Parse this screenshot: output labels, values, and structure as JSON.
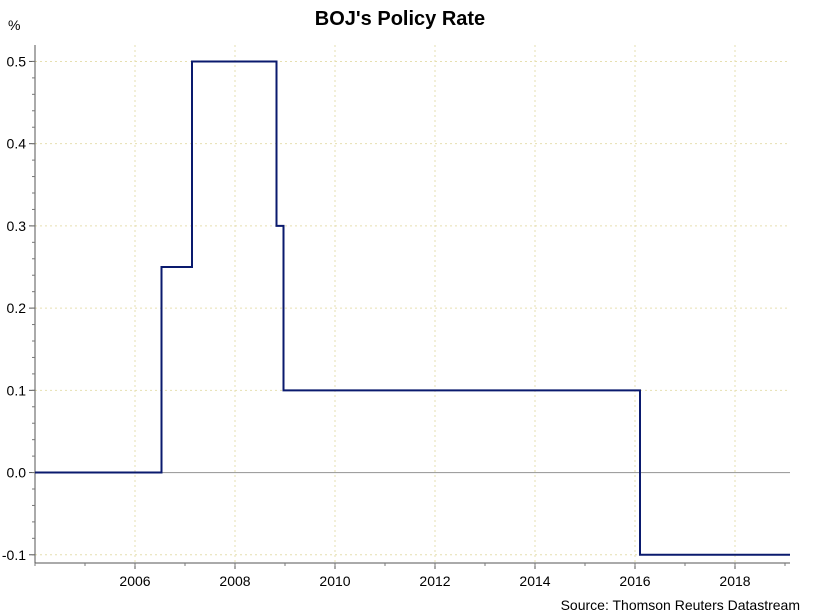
{
  "chart_data": {
    "type": "line",
    "title": "BOJ's Policy Rate",
    "ylabel": "%",
    "xlabel": "",
    "source": "Source: Thomson Reuters Datastream",
    "xlim": [
      2004.0,
      2019.1
    ],
    "ylim": [
      -0.11,
      0.52
    ],
    "x_ticks": [
      2006,
      2008,
      2010,
      2012,
      2014,
      2016,
      2018
    ],
    "y_ticks": [
      {
        "value": -0.1,
        "label": "-0.1"
      },
      {
        "value": 0.0,
        "label": "0.0"
      },
      {
        "value": 0.1,
        "label": "0.1"
      },
      {
        "value": 0.2,
        "label": "0.2"
      },
      {
        "value": 0.3,
        "label": "0.3"
      },
      {
        "value": 0.4,
        "label": "0.4"
      },
      {
        "value": 0.5,
        "label": "0.5"
      }
    ],
    "grid": true,
    "step": true,
    "series": [
      {
        "color": "#0a1a6e",
        "x": [
          2004.0,
          2006.53,
          2007.14,
          2008.83,
          2008.97,
          2016.1,
          2019.1
        ],
        "y": [
          0.0,
          0.25,
          0.5,
          0.3,
          0.1,
          -0.1,
          -0.1
        ]
      }
    ]
  }
}
